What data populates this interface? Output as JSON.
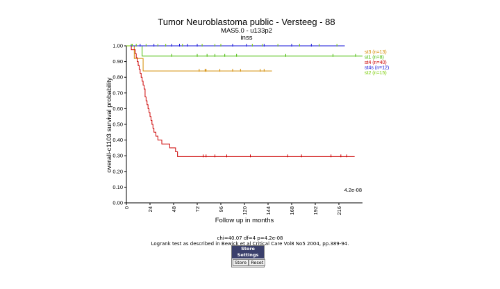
{
  "chart_data": {
    "type": "line",
    "title": "Tumor Neuroblastoma public - Versteeg - 88",
    "subtitle": "MAS5.0 - u133p2",
    "subtitle2": "inss",
    "xlabel": "Follow up in months",
    "ylabel": "overall-c1103 survival probability",
    "xlim": [
      0,
      240
    ],
    "ylim": [
      0,
      1
    ],
    "xticks": [
      0,
      24,
      48,
      72,
      96,
      120,
      144,
      168,
      192,
      216
    ],
    "yticks": [
      "0.00",
      "0.10",
      "0.20",
      "0.30",
      "0.40",
      "0.50",
      "0.60",
      "0.70",
      "0.80",
      "0.90",
      "1.00"
    ],
    "pvalue_label": "4.2e-08",
    "legend_position": "right",
    "series": [
      {
        "name": "st3 (n=13)",
        "color": "#d48a00",
        "steps": [
          [
            0,
            1.0
          ],
          [
            8,
            0.92
          ],
          [
            17,
            0.84
          ],
          [
            148,
            0.84
          ]
        ],
        "censors": [
          [
            74,
            0.84
          ],
          [
            80,
            0.84
          ],
          [
            81,
            0.84
          ],
          [
            95,
            0.84
          ],
          [
            108,
            0.84
          ],
          [
            116,
            0.84
          ],
          [
            136,
            0.84
          ],
          [
            140,
            0.84
          ]
        ]
      },
      {
        "name": "st1 (n=8)",
        "color": "#44bb00",
        "steps": [
          [
            0,
            1.0
          ],
          [
            16,
            0.935
          ],
          [
            240,
            0.935
          ]
        ],
        "censors": [
          [
            5,
            1.0
          ],
          [
            46,
            0.935
          ],
          [
            72,
            0.935
          ],
          [
            82,
            0.935
          ],
          [
            90,
            0.935
          ],
          [
            100,
            0.935
          ],
          [
            112,
            0.935
          ],
          [
            162,
            0.935
          ],
          [
            210,
            0.935
          ],
          [
            233,
            0.935
          ]
        ]
      },
      {
        "name": "st4 (n=40)",
        "color": "#cc0000",
        "steps": [
          [
            0,
            1.0
          ],
          [
            5,
            0.975
          ],
          [
            9,
            0.95
          ],
          [
            10,
            0.925
          ],
          [
            11,
            0.9
          ],
          [
            12,
            0.875
          ],
          [
            13,
            0.85
          ],
          [
            14,
            0.825
          ],
          [
            15,
            0.8
          ],
          [
            16,
            0.775
          ],
          [
            17,
            0.75
          ],
          [
            18,
            0.725
          ],
          [
            19,
            0.675
          ],
          [
            20,
            0.65
          ],
          [
            21,
            0.625
          ],
          [
            22,
            0.6
          ],
          [
            23,
            0.575
          ],
          [
            24,
            0.55
          ],
          [
            25,
            0.525
          ],
          [
            26,
            0.5
          ],
          [
            27,
            0.475
          ],
          [
            28,
            0.45
          ],
          [
            30,
            0.425
          ],
          [
            32,
            0.4
          ],
          [
            36,
            0.375
          ],
          [
            44,
            0.35
          ],
          [
            50,
            0.325
          ],
          [
            52,
            0.295
          ],
          [
            232,
            0.295
          ]
        ],
        "censors": [
          [
            78,
            0.295
          ],
          [
            81,
            0.295
          ],
          [
            90,
            0.295
          ],
          [
            102,
            0.295
          ],
          [
            126,
            0.295
          ],
          [
            164,
            0.295
          ],
          [
            178,
            0.295
          ],
          [
            208,
            0.295
          ],
          [
            218,
            0.295
          ],
          [
            224,
            0.295
          ]
        ]
      },
      {
        "name": "st4s (n=12)",
        "color": "#1515d8",
        "steps": [
          [
            0,
            1.0
          ],
          [
            222,
            1.0
          ]
        ],
        "censors": [
          [
            14,
            1.0
          ],
          [
            28,
            1.0
          ],
          [
            46,
            1.0
          ],
          [
            54,
            1.0
          ],
          [
            62,
            1.0
          ],
          [
            72,
            1.0
          ],
          [
            90,
            1.0
          ],
          [
            108,
            1.0
          ],
          [
            122,
            1.0
          ],
          [
            140,
            1.0
          ],
          [
            168,
            1.0
          ],
          [
            188,
            1.0
          ]
        ]
      },
      {
        "name": "st2 (n=15)",
        "color": "#77cc00",
        "steps": [
          [
            0,
            1.0
          ],
          [
            4,
            1.0
          ]
        ],
        "censors": [
          [
            6,
            1.0
          ],
          [
            10,
            1.0
          ],
          [
            20,
            1.0
          ],
          [
            32,
            1.0
          ],
          [
            40,
            1.0
          ],
          [
            57,
            1.0
          ],
          [
            77,
            1.0
          ],
          [
            90,
            1.0
          ],
          [
            96,
            1.0
          ],
          [
            128,
            1.0
          ],
          [
            138,
            1.0
          ],
          [
            154,
            1.0
          ],
          [
            176,
            1.0
          ],
          [
            196,
            1.0
          ],
          [
            214,
            1.0
          ]
        ]
      }
    ]
  },
  "stats": {
    "line1": "chi=40.07 df=4 p=4.2e-08",
    "line2": "Logrank test as described in Bewick et al Critical Care Vol8 No5 2004, pp.389-94."
  },
  "settings": {
    "header": "Store Settings",
    "store_label": "Store",
    "reset_label": "Reset"
  }
}
